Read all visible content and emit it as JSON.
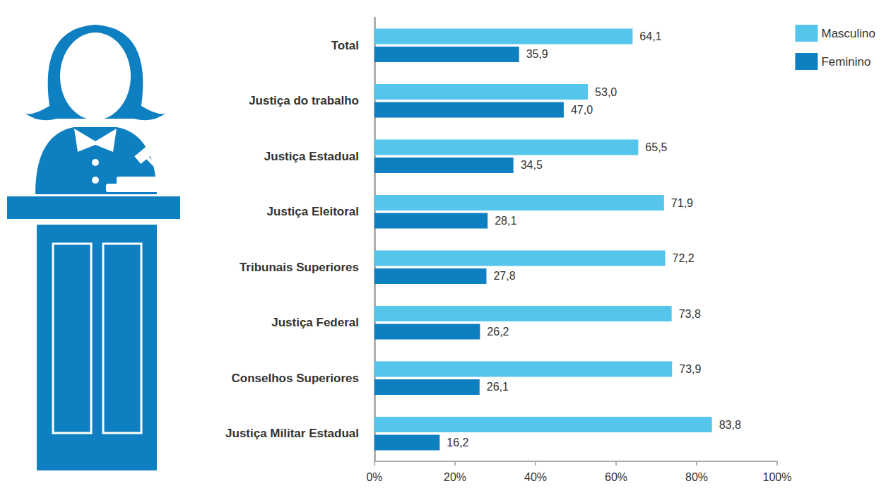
{
  "chart_data": {
    "type": "bar",
    "orientation": "horizontal",
    "categories": [
      "Total",
      "Justiça do trabalho",
      "Justiça Estadual",
      "Justiça Eleitoral",
      "Tribunais Superiores",
      "Justiça Federal",
      "Conselhos Superiores",
      "Justiça Militar Estadual"
    ],
    "series": [
      {
        "name": "Masculino",
        "color": "#56c5ec",
        "values": [
          64.1,
          53,
          65.5,
          71.9,
          72.2,
          73.8,
          73.9,
          83.8
        ],
        "value_labels": [
          "64,1",
          "53,0",
          "65,5",
          "71,9",
          "72,2",
          "73,8",
          "73,9",
          "83,8"
        ]
      },
      {
        "name": "Feminino",
        "color": "#0e7fc0",
        "values": [
          35.9,
          47,
          34.5,
          28.1,
          27.8,
          26.2,
          26.1,
          16.2
        ],
        "value_labels": [
          "35,9",
          "47,0",
          "34,5",
          "28,1",
          "27,8",
          "26,2",
          "26,1",
          "16,2"
        ]
      }
    ],
    "xlim": [
      0,
      100
    ],
    "xticks": [
      {
        "value": 0,
        "label": "0%"
      },
      {
        "value": 20,
        "label": "20%"
      },
      {
        "value": 40,
        "label": "40%"
      },
      {
        "value": 60,
        "label": "60%"
      },
      {
        "value": 80,
        "label": "80%"
      },
      {
        "value": 100,
        "label": "100%"
      }
    ],
    "grid": false,
    "data_labels": true,
    "legend": "top-right"
  }
}
